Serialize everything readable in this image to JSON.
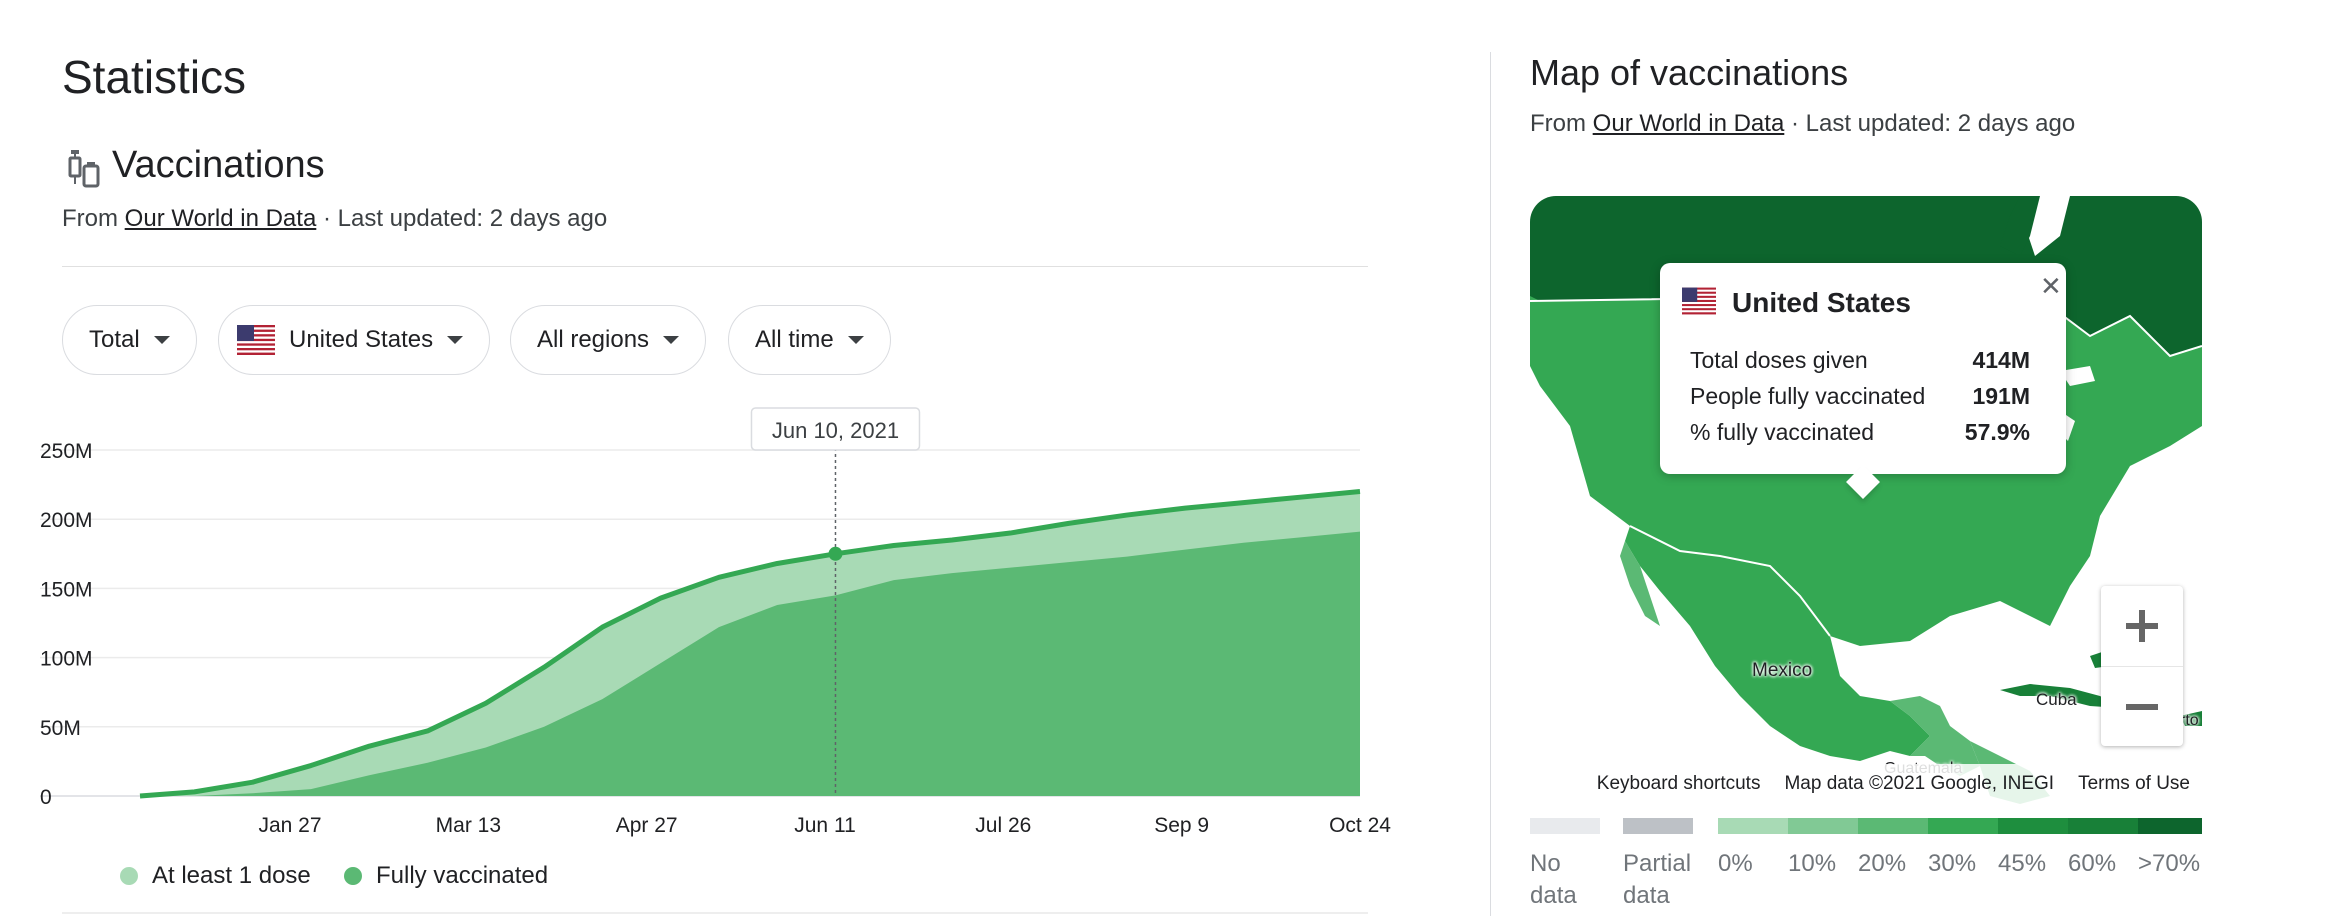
{
  "left": {
    "title": "Statistics",
    "section_title": "Vaccinations",
    "source_prefix": "From ",
    "source_link": "Our World in Data",
    "source_suffix": " · Last updated: 2 days ago",
    "filters": [
      {
        "label": "Total"
      },
      {
        "label": "United States"
      },
      {
        "label": "All regions"
      },
      {
        "label": "All time"
      }
    ],
    "legend": [
      {
        "label": "At least 1 dose",
        "color": "#a8dab5"
      },
      {
        "label": "Fully vaccinated",
        "color": "#5bb974"
      }
    ]
  },
  "chart_data": {
    "type": "area",
    "title": "",
    "xlabel": "",
    "ylabel": "",
    "x_tick_labels": [
      "Jan 27",
      "Mar 13",
      "Apr 27",
      "Jun 11",
      "Jul 26",
      "Sep 9",
      "Oct 24"
    ],
    "y_tick_labels": [
      "0",
      "50M",
      "100M",
      "150M",
      "200M",
      "250M"
    ],
    "ylim": [
      0,
      250000000
    ],
    "x": [
      "2020-12-14",
      "2020-12-28",
      "2021-01-12",
      "2021-01-27",
      "2021-02-11",
      "2021-02-26",
      "2021-03-13",
      "2021-03-28",
      "2021-04-12",
      "2021-04-27",
      "2021-05-12",
      "2021-05-27",
      "2021-06-11",
      "2021-06-26",
      "2021-07-11",
      "2021-07-26",
      "2021-08-10",
      "2021-08-25",
      "2021-09-09",
      "2021-09-24",
      "2021-10-09",
      "2021-10-24"
    ],
    "series": [
      {
        "name": "At least 1 dose",
        "color": "#a8dab5",
        "line_color": "#34a853",
        "values": [
          0,
          3000000,
          10000000,
          22000000,
          36000000,
          47000000,
          67000000,
          93000000,
          122000000,
          143000000,
          158000000,
          168000000,
          175000000,
          181000000,
          185000000,
          190000000,
          197000000,
          203000000,
          208000000,
          212000000,
          216000000,
          220000000
        ]
      },
      {
        "name": "Fully vaccinated",
        "color": "#5bb974",
        "values": [
          0,
          0,
          2000000,
          5000000,
          15000000,
          24000000,
          35000000,
          50000000,
          70000000,
          96000000,
          122000000,
          138000000,
          145000000,
          156000000,
          161000000,
          165000000,
          169000000,
          173000000,
          178000000,
          183000000,
          187000000,
          191000000
        ]
      }
    ],
    "highlight": {
      "label": "Jun 10, 2021",
      "index": 12
    },
    "grid": true,
    "legend_position": "bottom-left"
  },
  "right": {
    "title": "Map of vaccinations",
    "source_prefix": "From ",
    "source_link": "Our World in Data",
    "source_suffix": " · Last updated: 2 days ago",
    "tooltip": {
      "country": "United States",
      "rows": [
        {
          "label": "Total doses given",
          "value": "414M"
        },
        {
          "label": "People fully vaccinated",
          "value": "191M"
        },
        {
          "label": "% fully vaccinated",
          "value": "57.9%"
        }
      ]
    },
    "map_labels": {
      "mexico": "Mexico",
      "cuba": "Cuba",
      "guatemala": "Guatemala",
      "puerto": "rto"
    },
    "footer": {
      "shortcuts": "Keyboard shortcuts",
      "attribution": "Map data ©2021 Google, INEGI",
      "terms": "Terms of Use"
    },
    "scale": [
      {
        "label": "No data",
        "color": "#e8eaed"
      },
      {
        "label": "Partial data",
        "color": "#bdc1c6"
      },
      {
        "label": "0%",
        "color": "#a8dab5"
      },
      {
        "label": "10%",
        "color": "#81c995"
      },
      {
        "label": "20%",
        "color": "#5bb974"
      },
      {
        "label": "30%",
        "color": "#34a853"
      },
      {
        "label": "45%",
        "color": "#1e8e3e"
      },
      {
        "label": "60%",
        "color": "#188038"
      },
      {
        "label": ">70%",
        "color": "#0d652d"
      }
    ]
  }
}
